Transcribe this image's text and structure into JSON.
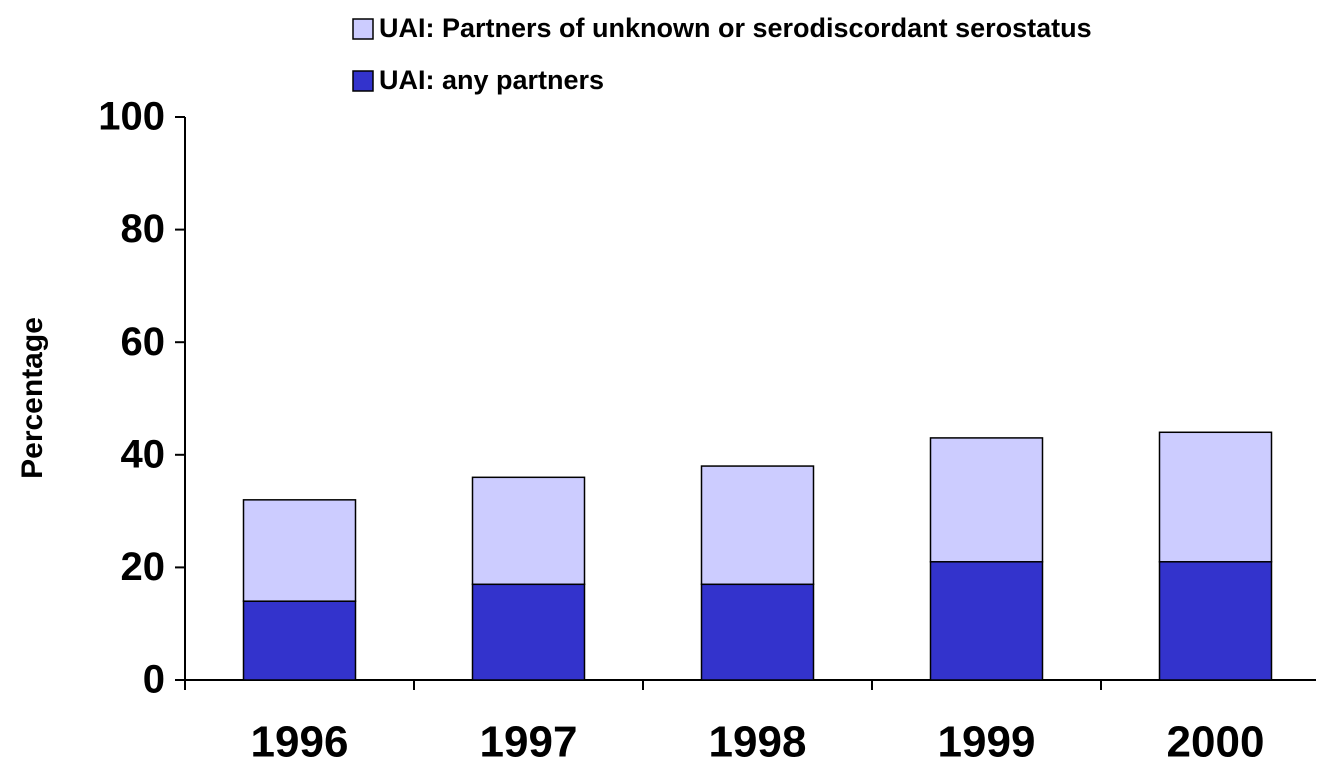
{
  "chart_data": {
    "type": "bar",
    "stacked": true,
    "y_label": "Percentage",
    "categories": [
      "1996",
      "1997",
      "1998",
      "1999",
      "2000"
    ],
    "series": [
      {
        "name": "UAI: any partners",
        "color": "#3333cc",
        "values": [
          14,
          17,
          17,
          21,
          21
        ]
      },
      {
        "name": "UAI: Partners of unknown or serodiscordant serostatus",
        "color": "#ccccff",
        "values": [
          18,
          19,
          21,
          22,
          23
        ]
      }
    ],
    "ylim": [
      0,
      100
    ],
    "yticks": [
      0,
      20,
      40,
      60,
      80,
      100
    ],
    "grid": false
  }
}
